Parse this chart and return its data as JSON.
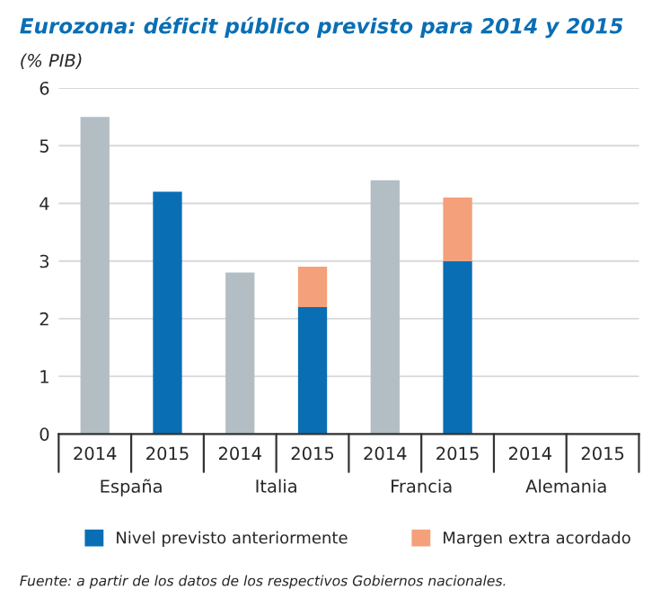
{
  "chart_data": {
    "type": "bar",
    "title": "Eurozona: déficit público previsto para 2014 y 2015",
    "subtitle": "(% PIB)",
    "categories": [
      "2014",
      "2015",
      "2014",
      "2015",
      "2014",
      "2015",
      "2014",
      "2015"
    ],
    "series": [
      {
        "color": "#b3bec4",
        "values": [
          5.5,
          null,
          2.8,
          null,
          4.4,
          null,
          null,
          null
        ]
      },
      {
        "name": "Nivel previsto anteriormente",
        "color": "#0a6eb4",
        "values": [
          null,
          4.2,
          null,
          2.2,
          null,
          3.0,
          null,
          null
        ]
      },
      {
        "name": "Margen extra acordado",
        "color": "#f4a07a",
        "values": [
          null,
          null,
          null,
          0.7,
          null,
          1.1,
          null,
          null
        ]
      }
    ],
    "stacked": true,
    "ylim": [
      0,
      6
    ],
    "yticks": [
      0,
      1,
      2,
      3,
      4,
      5,
      6
    ],
    "grid": "y",
    "legend": "bottom",
    "annotations": [
      "España",
      "Italia",
      "Francia",
      "Alemania",
      "Fuente: a partir de los datos de los respectivos Gobiernos nacionales."
    ]
  }
}
